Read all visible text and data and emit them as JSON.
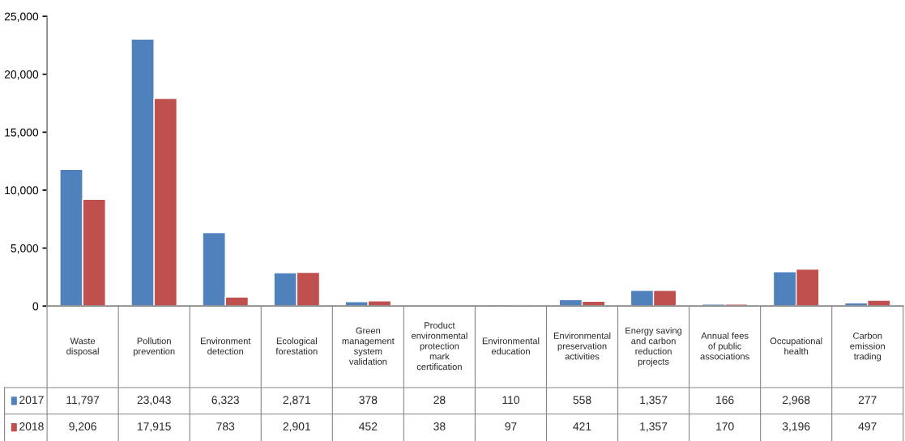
{
  "chart_data": {
    "type": "bar",
    "categories": [
      "Waste disposal",
      "Pollution prevention",
      "Environment detection",
      "Ecological forestation",
      "Green management system validation",
      "Product environmental protection mark certification",
      "Environmental education",
      "Environmental preservation activities",
      "Energy saving and carbon reduction projects",
      "Annual fees of public associations",
      "Occupational health",
      "Carbon emission trading"
    ],
    "series": [
      {
        "name": "2017",
        "color": "#4f81bd",
        "values": [
          11797,
          23043,
          6323,
          2871,
          378,
          28,
          110,
          558,
          1357,
          166,
          2968,
          277
        ],
        "value_labels": [
          "11,797",
          "23,043",
          "6,323",
          "2,871",
          "378",
          "28",
          "110",
          "558",
          "1,357",
          "166",
          "2,968",
          "277"
        ]
      },
      {
        "name": "2018",
        "color": "#c0504d",
        "values": [
          9206,
          17915,
          783,
          2901,
          452,
          38,
          97,
          421,
          1357,
          170,
          3196,
          497
        ],
        "value_labels": [
          "9,206",
          "17,915",
          "783",
          "2,901",
          "452",
          "38",
          "97",
          "421",
          "1,357",
          "170",
          "3,196",
          "497"
        ]
      }
    ],
    "ylim": [
      0,
      25000
    ],
    "yticks": [
      {
        "value": 0,
        "label": "0"
      },
      {
        "value": 5000,
        "label": "5,000"
      },
      {
        "value": 10000,
        "label": "10,000"
      },
      {
        "value": 15000,
        "label": "15,000"
      },
      {
        "value": 20000,
        "label": "20,000"
      },
      {
        "value": 25000,
        "label": "25,000"
      }
    ],
    "grid": false,
    "legend": "bottom left"
  }
}
